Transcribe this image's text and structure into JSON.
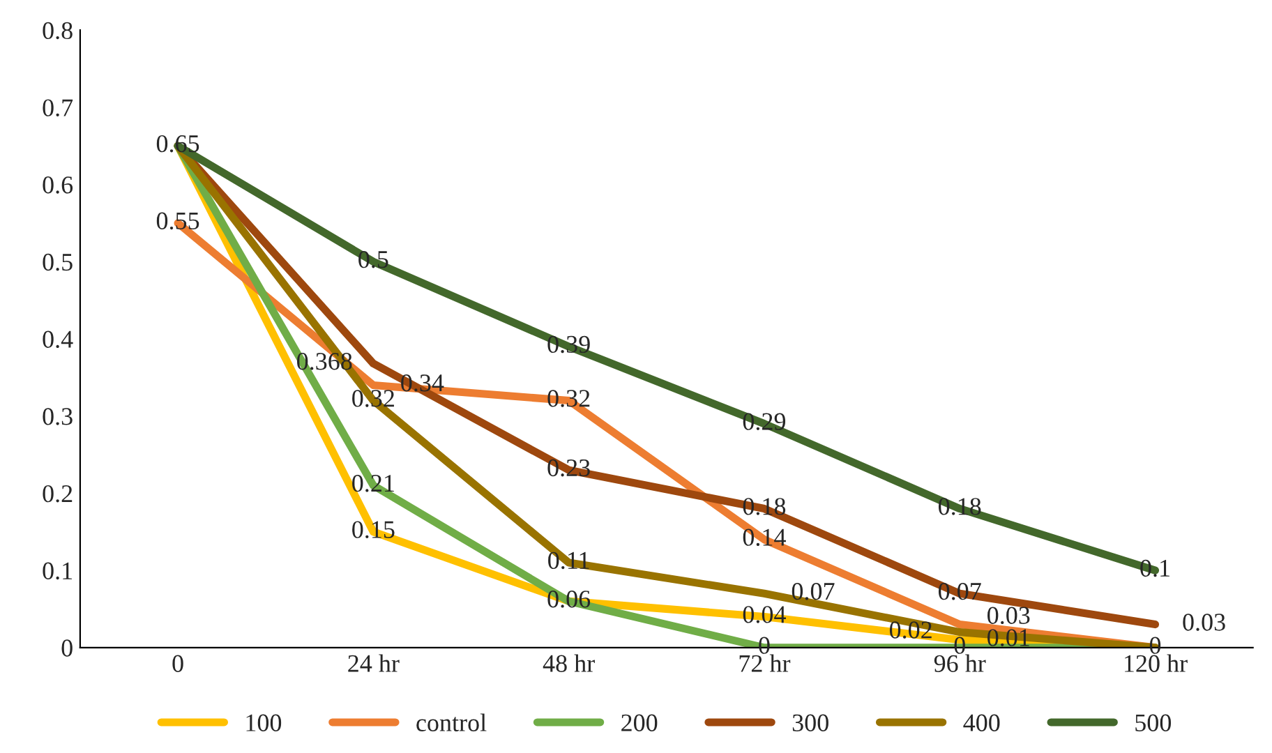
{
  "chart_data": {
    "type": "line",
    "categories": [
      "0",
      "24 hr",
      "48 hr",
      "72 hr",
      "96 hr",
      "120 hr"
    ],
    "series": [
      {
        "name": "100",
        "color": "#ffc000",
        "values": [
          0.65,
          0.15,
          0.06,
          0.04,
          0.01,
          0
        ],
        "value_labels": [
          null,
          "0.15",
          "0.06",
          "0.04",
          "0.01",
          null
        ]
      },
      {
        "name": "control",
        "color": "#ed7d31",
        "values": [
          0.55,
          0.34,
          0.32,
          0.14,
          0.03,
          0
        ],
        "value_labels": [
          "0.55",
          "0.34",
          "0.32",
          "0.14",
          "0.03",
          null
        ]
      },
      {
        "name": "200",
        "color": "#70ad47",
        "values": [
          0.65,
          0.21,
          0.06,
          0,
          0,
          0
        ],
        "value_labels": [
          "0.65",
          "0.21",
          null,
          "0",
          "0",
          "0"
        ]
      },
      {
        "name": "300",
        "color": "#9e480e",
        "values": [
          0.65,
          0.368,
          0.23,
          0.18,
          0.07,
          0.03
        ],
        "value_labels": [
          null,
          "0.368",
          "0.23",
          "0.18",
          "0.07",
          "0.03"
        ]
      },
      {
        "name": "400",
        "color": "#997300",
        "values": [
          0.65,
          0.32,
          0.11,
          0.07,
          0.02,
          0
        ],
        "value_labels": [
          null,
          "0.32",
          "0.11",
          "0.07",
          "0.02",
          null
        ]
      },
      {
        "name": "500",
        "color": "#43682b",
        "values": [
          0.65,
          0.5,
          0.39,
          0.29,
          0.18,
          0.1
        ],
        "value_labels": [
          null,
          "0.5",
          "0.39",
          "0.29",
          "0.18",
          "0.1"
        ]
      }
    ],
    "ylim": [
      0,
      0.8
    ],
    "yticks": [
      0,
      0.1,
      0.2,
      0.3,
      0.4,
      0.5,
      0.6,
      0.7,
      0.8
    ],
    "legend": "bottom",
    "grid": false,
    "marker": "none",
    "line_style": "solid"
  }
}
